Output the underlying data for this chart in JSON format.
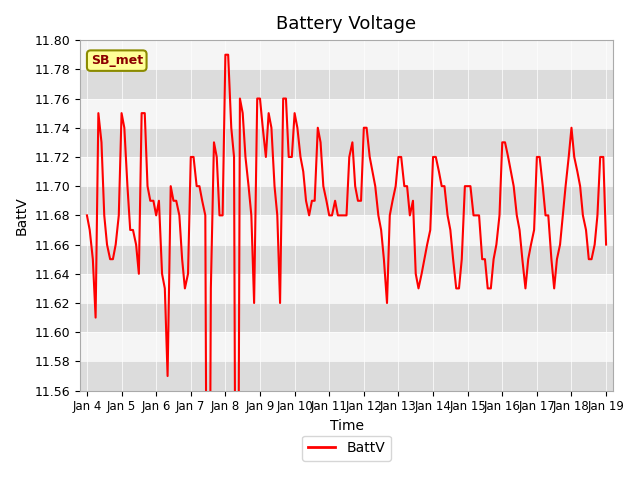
{
  "title": "Battery Voltage",
  "xlabel": "Time",
  "ylabel": "BattV",
  "legend_label": "BattV",
  "station_label": "SB_met",
  "ylim": [
    11.56,
    11.79
  ],
  "line_color": "#FF0000",
  "line_width": 1.5,
  "bg_color": "#E8E8E8",
  "plot_bg": "#F5F5F5",
  "band_color": "#DCDCDC",
  "x_ticks": [
    "Jan 4",
    "Jan 5",
    "Jan 6",
    "Jan 7",
    "Jan 8",
    "Jan 9",
    "Jan 10",
    "Jan 11",
    "Jan 12",
    "Jan 13",
    "Jan 14",
    "Jan 15",
    "Jan 16",
    "Jan 17",
    "Jan 18",
    "Jan 19"
  ],
  "x_values": [
    0,
    0.08,
    0.17,
    0.25,
    0.33,
    0.42,
    0.5,
    0.58,
    0.67,
    0.75,
    0.83,
    0.92,
    1,
    1.08,
    1.17,
    1.25,
    1.33,
    1.42,
    1.5,
    1.58,
    1.67,
    1.75,
    1.83,
    1.92,
    2,
    2.08,
    2.17,
    2.25,
    2.33,
    2.42,
    2.5,
    2.58,
    2.67,
    2.75,
    2.83,
    2.92,
    3,
    3.08,
    3.17,
    3.25,
    3.33,
    3.42,
    3.5,
    3.58,
    3.67,
    3.75,
    3.83,
    3.92,
    4,
    4.08,
    4.17,
    4.25,
    4.33,
    4.42,
    4.5,
    4.58,
    4.67,
    4.75,
    4.83,
    4.92,
    5,
    5.08,
    5.17,
    5.25,
    5.33,
    5.42,
    5.5,
    5.58,
    5.67,
    5.75,
    5.83,
    5.92,
    6,
    6.08,
    6.17,
    6.25,
    6.33,
    6.42,
    6.5,
    6.58,
    6.67,
    6.75,
    6.83,
    6.92,
    7,
    7.08,
    7.17,
    7.25,
    7.33,
    7.42,
    7.5,
    7.58,
    7.67,
    7.75,
    7.83,
    7.92,
    8,
    8.08,
    8.17,
    8.25,
    8.33,
    8.42,
    8.5,
    8.58,
    8.67,
    8.75,
    8.83,
    8.92,
    9,
    9.08,
    9.17,
    9.25,
    9.33,
    9.42,
    9.5,
    9.58,
    9.67,
    9.75,
    9.83,
    9.92,
    10,
    10.08,
    10.17,
    10.25,
    10.33,
    10.42,
    10.5,
    10.58,
    10.67,
    10.75,
    10.83,
    10.92,
    11,
    11.08,
    11.17,
    11.25,
    11.33,
    11.42,
    11.5,
    11.58,
    11.67,
    11.75,
    11.83,
    11.92,
    12,
    12.08,
    12.17,
    12.25,
    12.33,
    12.42,
    12.5,
    12.58,
    12.67,
    12.75,
    12.83,
    12.92,
    13,
    13.08,
    13.17,
    13.25,
    13.33,
    13.42,
    13.5,
    13.58,
    13.67,
    13.75,
    13.83,
    13.92,
    14,
    14.08,
    14.17,
    14.25,
    14.33,
    14.42,
    14.5,
    14.58,
    14.67,
    14.75,
    14.83,
    14.92,
    15
  ],
  "y_values": [
    11.68,
    11.67,
    11.65,
    11.61,
    11.75,
    11.73,
    11.68,
    11.66,
    11.65,
    11.65,
    11.66,
    11.68,
    11.75,
    11.74,
    11.7,
    11.67,
    11.67,
    11.66,
    11.64,
    11.75,
    11.75,
    11.7,
    11.69,
    11.69,
    11.68,
    11.69,
    11.64,
    11.63,
    11.57,
    11.7,
    11.69,
    11.69,
    11.68,
    11.65,
    11.63,
    11.64,
    11.72,
    11.72,
    11.7,
    11.7,
    11.69,
    11.68,
    11.22,
    11.63,
    11.73,
    11.72,
    11.68,
    11.68,
    11.79,
    11.79,
    11.74,
    11.72,
    11.21,
    11.76,
    11.75,
    11.72,
    11.7,
    11.68,
    11.62,
    11.76,
    11.76,
    11.74,
    11.72,
    11.75,
    11.74,
    11.7,
    11.68,
    11.62,
    11.76,
    11.76,
    11.72,
    11.72,
    11.75,
    11.74,
    11.72,
    11.71,
    11.69,
    11.68,
    11.69,
    11.69,
    11.74,
    11.73,
    11.7,
    11.69,
    11.68,
    11.68,
    11.69,
    11.68,
    11.68,
    11.68,
    11.68,
    11.72,
    11.73,
    11.7,
    11.69,
    11.69,
    11.74,
    11.74,
    11.72,
    11.71,
    11.7,
    11.68,
    11.67,
    11.65,
    11.62,
    11.68,
    11.69,
    11.7,
    11.72,
    11.72,
    11.7,
    11.7,
    11.68,
    11.69,
    11.64,
    11.63,
    11.64,
    11.65,
    11.66,
    11.67,
    11.72,
    11.72,
    11.71,
    11.7,
    11.7,
    11.68,
    11.67,
    11.65,
    11.63,
    11.63,
    11.65,
    11.7,
    11.7,
    11.7,
    11.68,
    11.68,
    11.68,
    11.65,
    11.65,
    11.63,
    11.63,
    11.65,
    11.66,
    11.68,
    11.73,
    11.73,
    11.72,
    11.71,
    11.7,
    11.68,
    11.67,
    11.65,
    11.63,
    11.65,
    11.66,
    11.67,
    11.72,
    11.72,
    11.7,
    11.68,
    11.68,
    11.65,
    11.63,
    11.65,
    11.66,
    11.68,
    11.7,
    11.72,
    11.74,
    11.72,
    11.71,
    11.7,
    11.68,
    11.67,
    11.65,
    11.65,
    11.66,
    11.68,
    11.72,
    11.72,
    11.66
  ]
}
